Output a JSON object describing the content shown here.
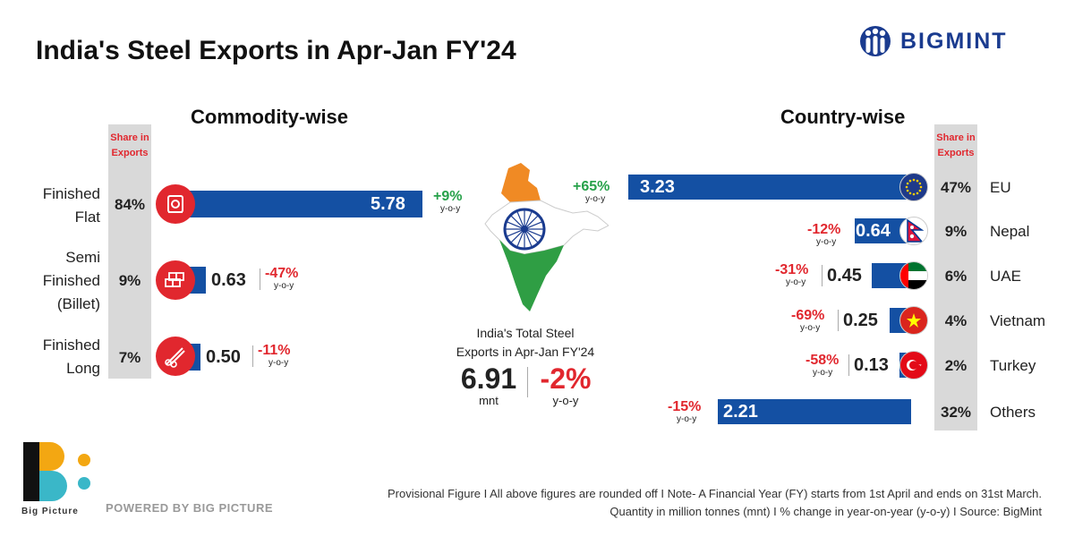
{
  "title": "India's Steel Exports in Apr-Jan FY'24",
  "brand": {
    "name": "BIGMINT"
  },
  "share_header": {
    "line1": "Share in",
    "line2": "Exports"
  },
  "chart_data": [
    {
      "type": "bar",
      "title": "Commodity-wise",
      "unit": "mnt",
      "categories": [
        "Finished Flat",
        "Semi Finished (Billet)",
        "Finished Long"
      ],
      "label_lines": [
        [
          "Finished",
          "Flat"
        ],
        [
          "Semi",
          "Finished",
          "(Billet)"
        ],
        [
          "Finished",
          "Long"
        ]
      ],
      "values": [
        5.78,
        0.63,
        0.5
      ],
      "value_labels": [
        "5.78",
        "0.63",
        "0.50"
      ],
      "share": [
        "84%",
        "9%",
        "7%"
      ],
      "yoy_change": [
        "+9%",
        "-47%",
        "-11%"
      ],
      "icons": [
        "coil-icon",
        "billet-icon",
        "long-bars-icon"
      ]
    },
    {
      "type": "bar",
      "title": "Country-wise",
      "unit": "mnt",
      "categories": [
        "EU",
        "Nepal",
        "UAE",
        "Vietnam",
        "Turkey",
        "Others"
      ],
      "values": [
        3.23,
        0.64,
        0.45,
        0.25,
        0.13,
        2.21
      ],
      "value_labels": [
        "3.23",
        "0.64",
        "0.45",
        "0.25",
        "0.13",
        "2.21"
      ],
      "share": [
        "47%",
        "9%",
        "6%",
        "4%",
        "2%",
        "32%"
      ],
      "yoy_change": [
        "+65%",
        "-12%",
        "-31%",
        "-69%",
        "-58%",
        "-15%"
      ],
      "flags": [
        "eu-flag-icon",
        "nepal-flag-icon",
        "uae-flag-icon",
        "vietnam-flag-icon",
        "turkey-flag-icon",
        ""
      ]
    }
  ],
  "yoy_label": "y-o-y",
  "total": {
    "caption_line1": "India's Total Steel",
    "caption_line2": "Exports in Apr-Jan FY'24",
    "value": "6.91",
    "unit": "mnt",
    "change": "-2%",
    "change_label": "y-o-y"
  },
  "footer": {
    "note1": "Provisional Figure  I  All above figures are rounded off  I  Note- A Financial Year (FY) starts from 1st April and ends on 31st March.",
    "note2": "Quantity in million tonnes (mnt)  I  % change in year-on-year (y-o-y)  I  Source: BigMint",
    "powered": "POWERED BY BIG PICTURE",
    "bp_name": "Big Picture"
  },
  "colors": {
    "bar": "#1450a3",
    "positive": "#27a14a",
    "negative": "#e1272e",
    "accent": "#e1272e",
    "brand": "#1a3b8f"
  }
}
